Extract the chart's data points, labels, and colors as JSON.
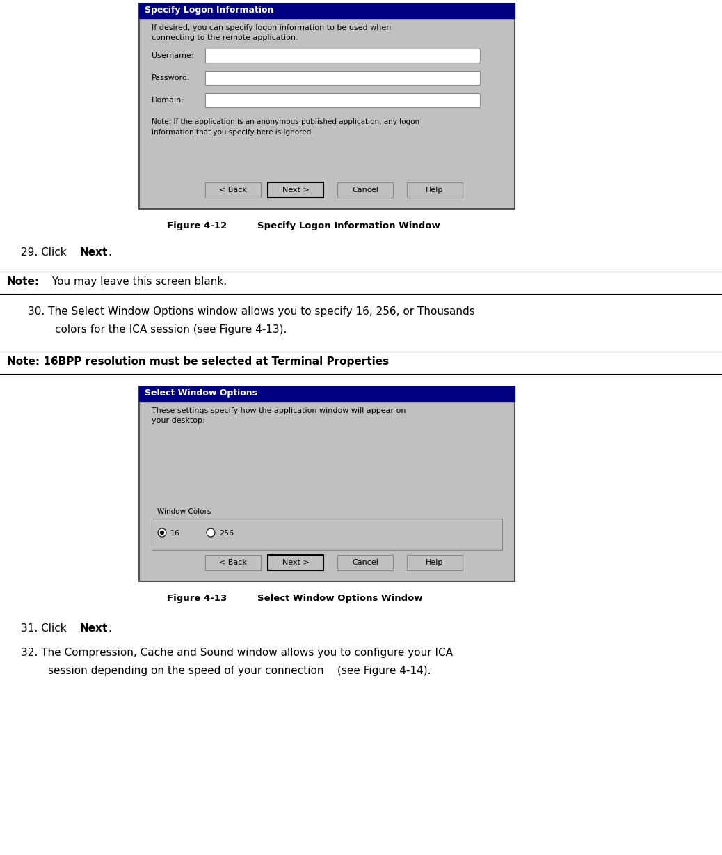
{
  "fig_width": 10.38,
  "fig_height": 12.28,
  "dpi": 100,
  "bg_color": "#ffffff",
  "dialog_bg": "#c0c0c0",
  "dialog_title_bg": "#000080",
  "dialog_title_color": "#ffffff",
  "input_bg": "#ffffff",
  "button_bg": "#c0c0c0",
  "fig1_caption_label": "Figure 4-12",
  "fig1_caption_text": "Specify Logon Information Window",
  "fig1_dialog_title": "Specify Logon Information",
  "fig1_dialog_desc1": "If desired, you can specify logon information to be used when",
  "fig1_dialog_desc2": "connecting to the remote application.",
  "fig1_username": "Username:",
  "fig1_password": "Password:",
  "fig1_domain": "Domain:",
  "fig1_note1": "Note: If the application is an anonymous published application, any logon",
  "fig1_note2": "information that you specify here is ignored.",
  "fig1_btn_back": "< Back",
  "fig1_btn_next": "Next >",
  "fig1_btn_cancel": "Cancel",
  "fig1_btn_help": "Help",
  "step29_normal": "29. Click ",
  "step29_bold": "Next",
  "step29_end": ".",
  "note1_bold": "Note:",
  "note1_text": " You may leave this screen blank.",
  "step30_line1": "30. The Select Window Options window allows you to specify 16, 256, or Thousands",
  "step30_line2": "        colors for the ICA session (see Figure 4-13).",
  "note2_text": "Note: 16BPP resolution must be selected at Terminal Properties",
  "fig2_dialog_title": "Select Window Options",
  "fig2_dialog_desc1": "These settings specify how the application window will appear on",
  "fig2_dialog_desc2": "your desktop:",
  "fig2_group_label": "Window Colors",
  "fig2_radio1": "16",
  "fig2_radio2": "256",
  "fig2_caption_label": "Figure 4-13",
  "fig2_caption_text": "Select Window Options Window",
  "step31_normal": "31. Click ",
  "step31_bold": "Next",
  "step31_end": ".",
  "step32_line1": "32. The Compression, Cache and Sound window allows you to configure your ICA",
  "step32_line2": "        session depending on the speed of your connection    (see Figure 4-14)."
}
